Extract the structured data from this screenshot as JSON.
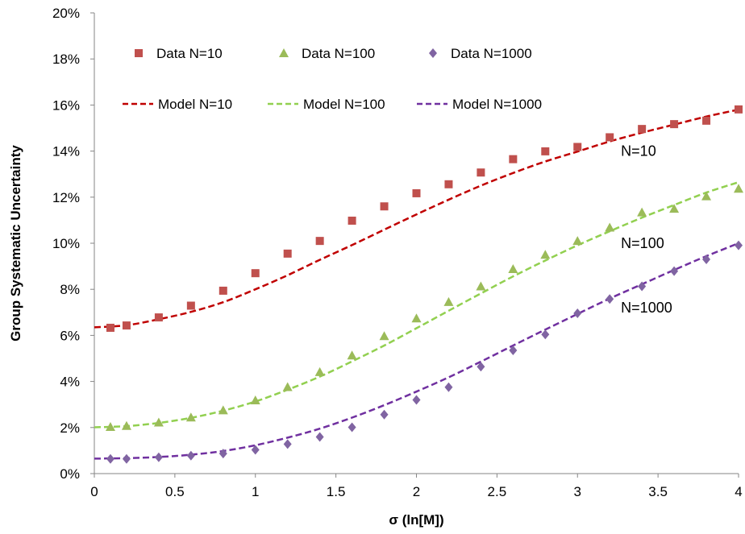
{
  "chart_data": {
    "type": "scatter",
    "xlabel": "σ (ln[M])",
    "ylabel": "Group Systematic Uncertainty",
    "xlim": [
      0,
      4
    ],
    "ylim": [
      0,
      20
    ],
    "x_ticks": [
      "0",
      "0.5",
      "1",
      "1.5",
      "2",
      "2.5",
      "3",
      "3.5",
      "4"
    ],
    "y_ticks": [
      "0%",
      "2%",
      "4%",
      "6%",
      "8%",
      "10%",
      "12%",
      "14%",
      "16%",
      "18%",
      "20%"
    ],
    "grid": false,
    "legend_position": "top-left inside",
    "colors": {
      "n10": "#c0504d",
      "n100": "#9bbb59",
      "n1000": "#8064a2",
      "model_n10": "#c00000",
      "model_n100": "#92d050",
      "model_n1000": "#7030a0"
    },
    "series": [
      {
        "name": "Data N=10",
        "kind": "markers",
        "marker": "square",
        "color_key": "n10",
        "x": [
          0.1,
          0.2,
          0.4,
          0.6,
          0.8,
          1.0,
          1.2,
          1.4,
          1.6,
          1.8,
          2.0,
          2.2,
          2.4,
          2.6,
          2.8,
          3.0,
          3.2,
          3.4,
          3.6,
          3.8,
          4.0
        ],
        "y": [
          6.33,
          6.43,
          6.78,
          7.29,
          7.94,
          8.7,
          9.55,
          10.1,
          10.98,
          11.6,
          12.17,
          12.56,
          13.07,
          13.65,
          13.99,
          14.18,
          14.6,
          14.96,
          15.17,
          15.32,
          15.81
        ]
      },
      {
        "name": "Data N=100",
        "kind": "markers",
        "marker": "triangle",
        "color_key": "n100",
        "x": [
          0.1,
          0.2,
          0.4,
          0.6,
          0.8,
          1.0,
          1.2,
          1.4,
          1.6,
          1.8,
          2.0,
          2.2,
          2.4,
          2.6,
          2.8,
          3.0,
          3.2,
          3.4,
          3.6,
          3.8,
          4.0
        ],
        "y": [
          2.03,
          2.07,
          2.22,
          2.44,
          2.75,
          3.18,
          3.76,
          4.41,
          5.13,
          5.97,
          6.74,
          7.45,
          8.13,
          8.88,
          9.5,
          10.1,
          10.68,
          11.34,
          11.5,
          12.04,
          12.37
        ]
      },
      {
        "name": "Data N=1000",
        "kind": "markers",
        "marker": "diamond",
        "color_key": "n1000",
        "x": [
          0.1,
          0.2,
          0.4,
          0.6,
          0.8,
          1.0,
          1.2,
          1.4,
          1.6,
          1.8,
          2.0,
          2.2,
          2.4,
          2.6,
          2.8,
          3.0,
          3.2,
          3.4,
          3.6,
          3.8,
          4.0
        ],
        "y": [
          0.64,
          0.64,
          0.71,
          0.78,
          0.87,
          1.03,
          1.28,
          1.59,
          2.01,
          2.56,
          3.2,
          3.75,
          4.64,
          5.35,
          6.04,
          6.96,
          7.58,
          8.13,
          8.79,
          9.3,
          9.91
        ]
      },
      {
        "name": "Model N=10",
        "kind": "dashed-line",
        "color_key": "model_n10",
        "x": [
          0,
          0.2,
          0.4,
          0.6,
          0.8,
          1.0,
          1.2,
          1.4,
          1.6,
          1.8,
          2.0,
          2.2,
          2.4,
          2.6,
          2.8,
          3.0,
          3.2,
          3.4,
          3.6,
          3.8,
          4.0
        ],
        "y": [
          6.35,
          6.44,
          6.7,
          7.02,
          7.44,
          8.0,
          8.61,
          9.28,
          9.92,
          10.59,
          11.25,
          11.89,
          12.5,
          13.05,
          13.55,
          13.98,
          14.42,
          14.8,
          15.15,
          15.5,
          15.8
        ]
      },
      {
        "name": "Model N=100",
        "kind": "dashed-line",
        "color_key": "model_n100",
        "x": [
          0,
          0.2,
          0.4,
          0.6,
          0.8,
          1.0,
          1.2,
          1.4,
          1.6,
          1.8,
          2.0,
          2.2,
          2.4,
          2.6,
          2.8,
          3.0,
          3.2,
          3.4,
          3.6,
          3.8,
          4.0
        ],
        "y": [
          2.01,
          2.06,
          2.2,
          2.42,
          2.73,
          3.13,
          3.64,
          4.21,
          4.87,
          5.56,
          6.31,
          7.07,
          7.82,
          8.56,
          9.25,
          9.91,
          10.52,
          11.11,
          11.66,
          12.2,
          12.65
        ]
      },
      {
        "name": "Model N=1000",
        "kind": "dashed-line",
        "color_key": "model_n1000",
        "x": [
          0,
          0.2,
          0.4,
          0.6,
          0.8,
          1.0,
          1.2,
          1.4,
          1.6,
          1.8,
          2.0,
          2.2,
          2.4,
          2.6,
          2.8,
          3.0,
          3.2,
          3.4,
          3.6,
          3.8,
          4.0
        ],
        "y": [
          0.65,
          0.67,
          0.72,
          0.82,
          0.98,
          1.23,
          1.56,
          1.95,
          2.43,
          2.97,
          3.56,
          4.18,
          4.86,
          5.56,
          6.25,
          6.93,
          7.6,
          8.22,
          8.84,
          9.44,
          10.0
        ]
      }
    ],
    "annotations": [
      {
        "text": "N=10",
        "x": 3.27,
        "y": 14.0
      },
      {
        "text": "N=100",
        "x": 3.27,
        "y": 10.0
      },
      {
        "text": "N=1000",
        "x": 3.27,
        "y": 7.2
      }
    ]
  }
}
